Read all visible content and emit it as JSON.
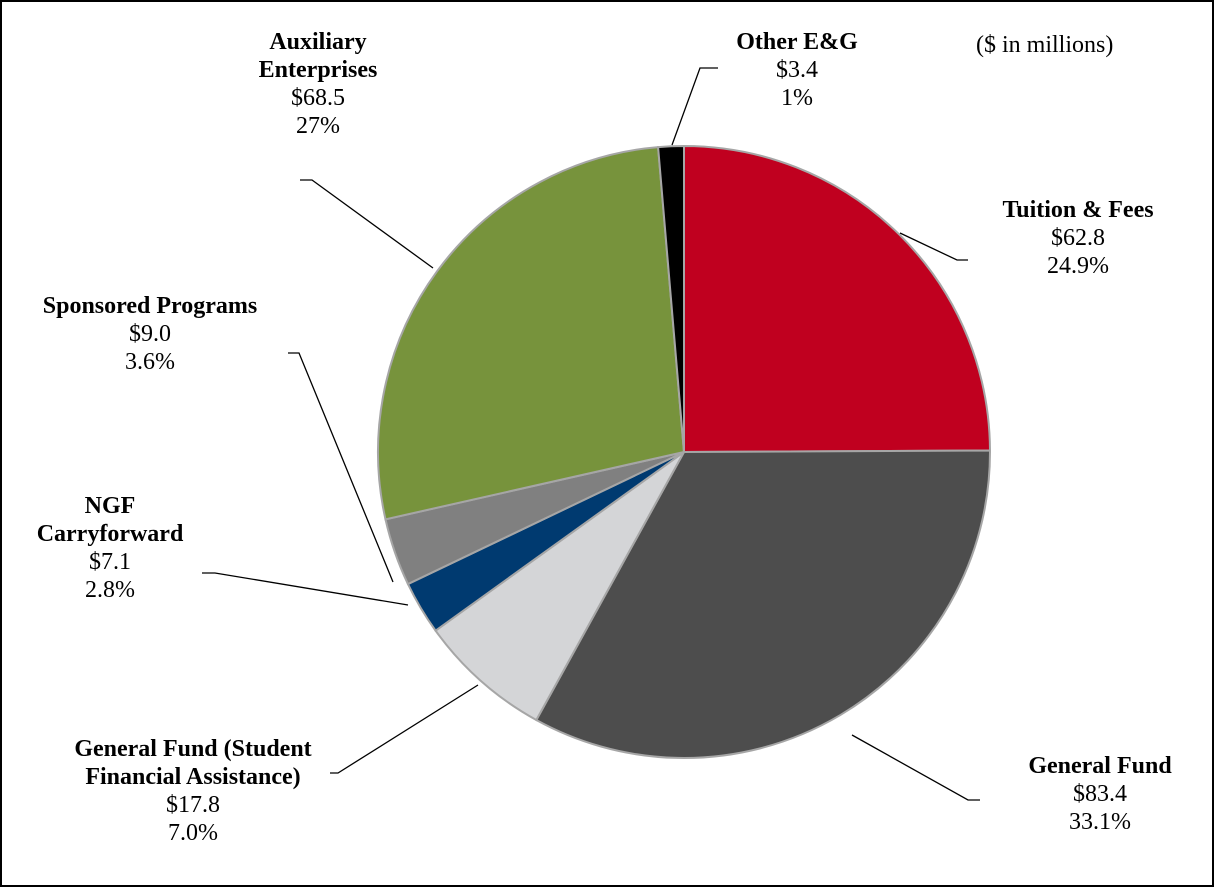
{
  "chart_data": {
    "type": "pie",
    "subtitle": "($ in millions)",
    "categories": [
      "Tuition & Fees",
      "General Fund",
      "General Fund (Student Financial Assistance)",
      "NGF Carryforward",
      "Sponsored Programs",
      "Auxiliary Enterprises",
      "Other E&G"
    ],
    "values": [
      62.8,
      83.4,
      17.8,
      7.1,
      9.0,
      68.5,
      3.4
    ],
    "value_labels": [
      "$62.8",
      "$83.4",
      "$17.8",
      "$7.1",
      "$9.0",
      "$68.5",
      "$3.4"
    ],
    "percents": [
      24.9,
      33.1,
      7.0,
      2.8,
      3.6,
      27,
      1
    ],
    "percent_labels": [
      "24.9%",
      "33.1%",
      "7.0%",
      "2.8%",
      "3.6%",
      "27%",
      "1%"
    ],
    "colors": [
      "#c0001f",
      "#4d4d4d",
      "#d4d5d7",
      "#003a70",
      "#808080",
      "#77933c",
      "#000000"
    ]
  }
}
